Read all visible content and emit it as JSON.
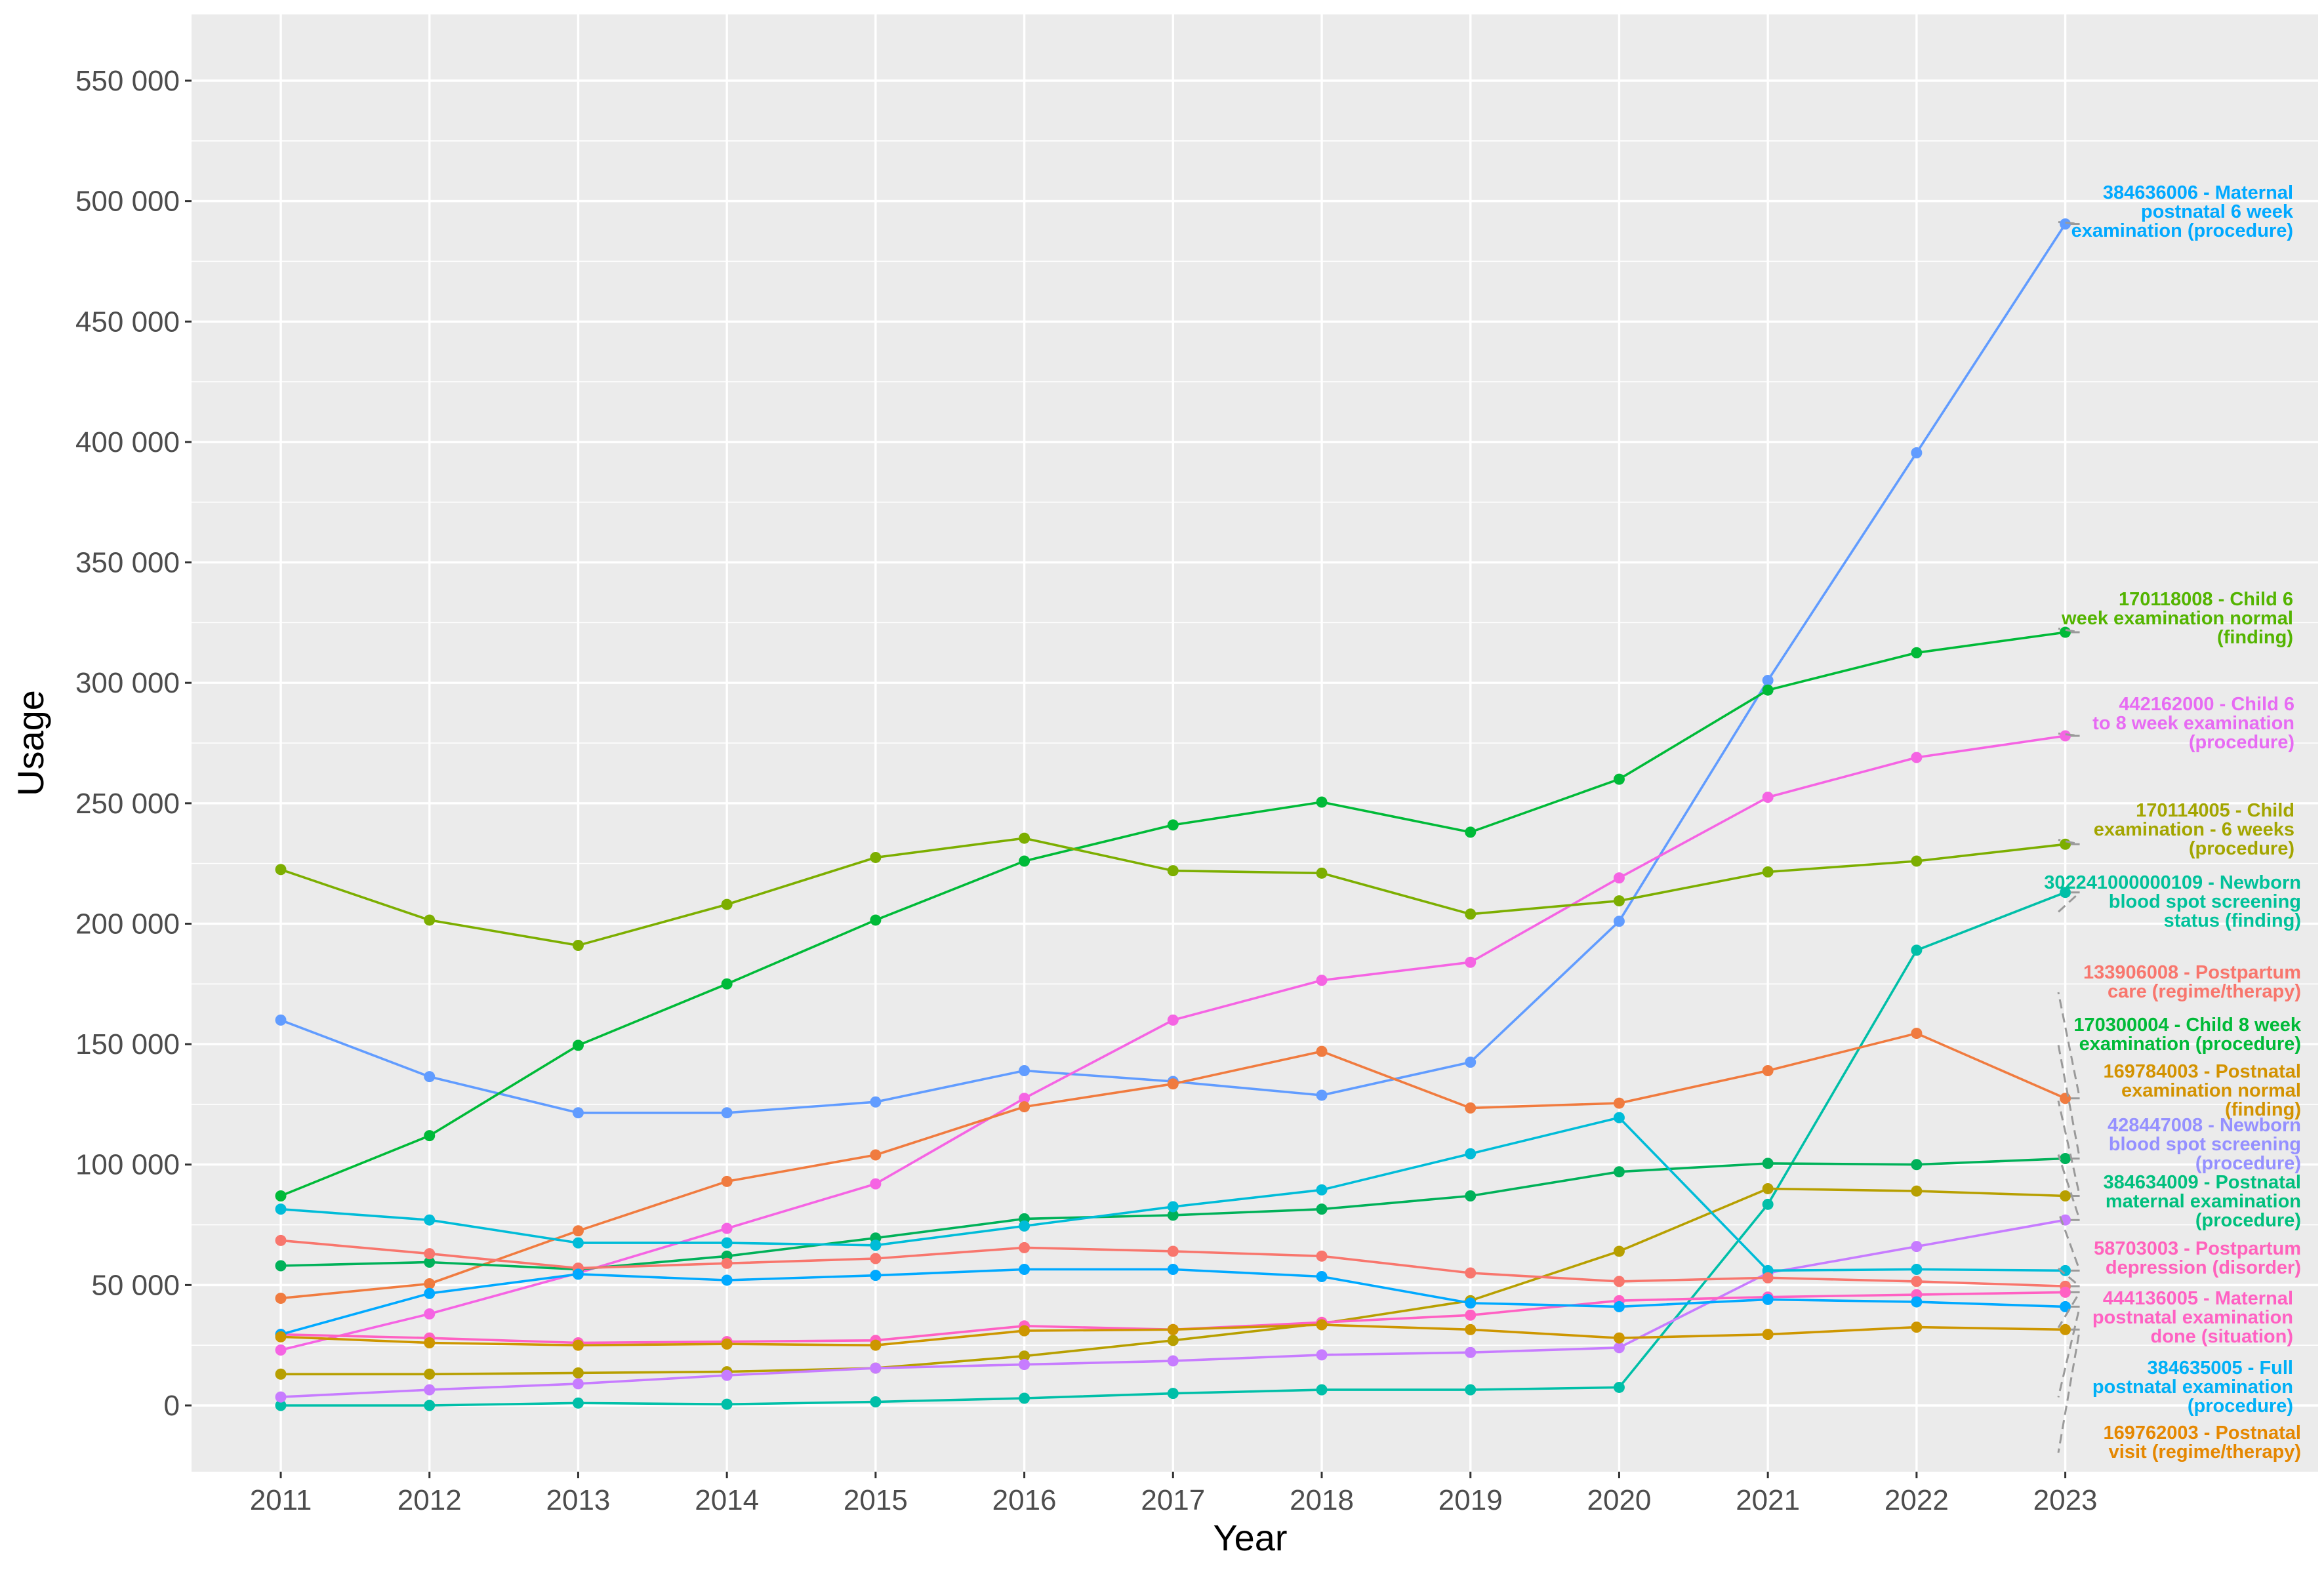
{
  "chart_data": {
    "type": "line",
    "title": "",
    "xlabel": "Year",
    "ylabel": "Usage",
    "x": [
      2011,
      2012,
      2013,
      2014,
      2015,
      2016,
      2017,
      2018,
      2019,
      2020,
      2021,
      2022,
      2023
    ],
    "xlim": [
      2010.4,
      2024.7
    ],
    "ylim": [
      -27500,
      577500
    ],
    "y_ticks": [
      0,
      50000,
      100000,
      150000,
      200000,
      250000,
      300000,
      350000,
      400000,
      450000,
      500000,
      550000
    ],
    "y_tick_labels": [
      "0",
      "50 000",
      "100 000",
      "150 000",
      "200 000",
      "250 000",
      "300 000",
      "350 000",
      "400 000",
      "450 000",
      "500 000",
      "550 000"
    ],
    "grid": true,
    "legend": "labels at right end of each line",
    "series": [
      {
        "name": "384636006 - Maternal postnatal 6 week examination (procedure)",
        "label_lines": [
          "384636006 - Maternal",
          "postnatal 6 week",
          "examination (procedure)"
        ],
        "color": "#619CFF",
        "label_color": "#00A9FF",
        "values": [
          160000,
          136500,
          121500,
          121500,
          126000,
          139000,
          134500,
          128800,
          142500,
          201000,
          301000,
          395500,
          490500
        ]
      },
      {
        "name": "170118008 - Child 6 week examination normal (finding)",
        "label_lines": [
          "170118008 - Child 6",
          "week examination normal",
          "(finding)"
        ],
        "color": "#00BA38",
        "label_color": "#53B400",
        "values": [
          87000,
          112000,
          149500,
          175000,
          201500,
          226000,
          241000,
          250500,
          238000,
          260000,
          297000,
          312500,
          321000
        ]
      },
      {
        "name": "442162000 - Child 6 to 8 week examination (procedure)",
        "label_lines": [
          "442162000 - Child 6",
          "to 8 week examination",
          "(procedure)"
        ],
        "color": "#F564E3",
        "label_color": "#E76BF3",
        "values": [
          23000,
          38000,
          55000,
          73500,
          92000,
          127500,
          160000,
          176500,
          184000,
          219000,
          252500,
          269000,
          278000
        ]
      },
      {
        "name": "170114005 - Child examination - 6 weeks (procedure)",
        "label_lines": [
          "170114005 - Child",
          "examination - 6 weeks",
          "(procedure)"
        ],
        "color": "#7CAE00",
        "label_color": "#A3A500",
        "values": [
          222500,
          201500,
          191000,
          208000,
          227500,
          235500,
          222000,
          221000,
          204000,
          209500,
          221500,
          226000,
          233000
        ]
      },
      {
        "name": "302241000000109 - Newborn blood spot screening status (finding)",
        "label_lines": [
          "302241000000109 - Newborn",
          "blood spot screening",
          "status (finding)"
        ],
        "color": "#00BFA8",
        "label_color": "#00C19A",
        "values": [
          0,
          0,
          1000,
          500,
          1500,
          3000,
          5000,
          6500,
          6500,
          7500,
          83500,
          189000,
          213000
        ]
      },
      {
        "name": "133906008 - Postpartum care (regime/therapy)",
        "label_lines": [
          "133906008 - Postpartum",
          "care (regime/therapy)"
        ],
        "color": "#F07B3F",
        "label_color": "#F8766D",
        "values": [
          44500,
          50500,
          72500,
          93000,
          104000,
          124000,
          133500,
          147000,
          123500,
          125500,
          139000,
          154500,
          127500
        ]
      },
      {
        "name": "170300004 - Child 8 week examination (procedure)",
        "label_lines": [
          "170300004 - Child 8 week",
          "examination (procedure)"
        ],
        "color": "#00B159",
        "label_color": "#00BA38",
        "values": [
          58000,
          59500,
          56500,
          62000,
          69500,
          77500,
          79000,
          81500,
          87000,
          97000,
          100500,
          100000,
          102500
        ]
      },
      {
        "name": "169784003 - Postnatal examination normal (finding)",
        "label_lines": [
          "169784003 - Postnatal",
          "examination normal",
          "(finding)"
        ],
        "color": "#B79F00",
        "label_color": "#D39200",
        "values": [
          13000,
          13000,
          13500,
          14000,
          15500,
          20500,
          27000,
          34000,
          43500,
          64000,
          90000,
          89000,
          87000
        ]
      },
      {
        "name": "428447008 - Newborn blood spot screening (procedure)",
        "label_lines": [
          "428447008 - Newborn",
          "blood spot screening",
          "(procedure)"
        ],
        "color": "#C77CFF",
        "label_color": "#9590FF",
        "values": [
          3500,
          6500,
          9000,
          12500,
          15500,
          17000,
          18500,
          21000,
          22000,
          24000,
          55000,
          66000,
          77000
        ]
      },
      {
        "name": "384634009 - Postnatal maternal examination (procedure)",
        "label_lines": [
          "384634009 - Postnatal",
          "maternal examination",
          "(procedure)"
        ],
        "color": "#00BCD8",
        "label_color": "#00BF7D",
        "values": [
          81500,
          77000,
          67500,
          67500,
          66500,
          74500,
          82500,
          89500,
          104500,
          119500,
          56000,
          56500,
          56000
        ]
      },
      {
        "name": "58703003 - Postpartum depression (disorder)",
        "label_lines": [
          "58703003 - Postpartum",
          "depression (disorder)"
        ],
        "color": "#F8766D",
        "label_color": "#FF62BC",
        "values": [
          68500,
          63000,
          57000,
          59000,
          61000,
          65500,
          64000,
          62000,
          55000,
          51500,
          53000,
          51500,
          49500
        ]
      },
      {
        "name": "444136005 - Maternal postnatal examination done (situation)",
        "label_lines": [
          "444136005 - Maternal",
          "postnatal examination",
          "done (situation)"
        ],
        "color": "#FF61C3",
        "label_color": "#FF61C3",
        "values": [
          29500,
          28000,
          26000,
          26500,
          27000,
          33000,
          31500,
          34500,
          37500,
          43500,
          45000,
          46000,
          47000
        ]
      },
      {
        "name": "384635005 - Full postnatal examination (procedure)",
        "label_lines": [
          "384635005 - Full",
          "postnatal examination",
          "(procedure)"
        ],
        "color": "#00A9FF",
        "label_color": "#00B0F6",
        "values": [
          29500,
          46500,
          54500,
          52000,
          54000,
          56500,
          56500,
          53500,
          42500,
          41000,
          44000,
          43000,
          41000
        ]
      },
      {
        "name": "169762003 - Postnatal visit (regime/therapy)",
        "label_lines": [
          "169762003 - Postnatal",
          "visit (regime/therapy)"
        ],
        "color": "#CD9600",
        "label_color": "#E58700",
        "values": [
          28500,
          26000,
          25000,
          25500,
          25000,
          31000,
          31500,
          33500,
          31500,
          28000,
          29500,
          32500,
          31500
        ]
      }
    ]
  }
}
